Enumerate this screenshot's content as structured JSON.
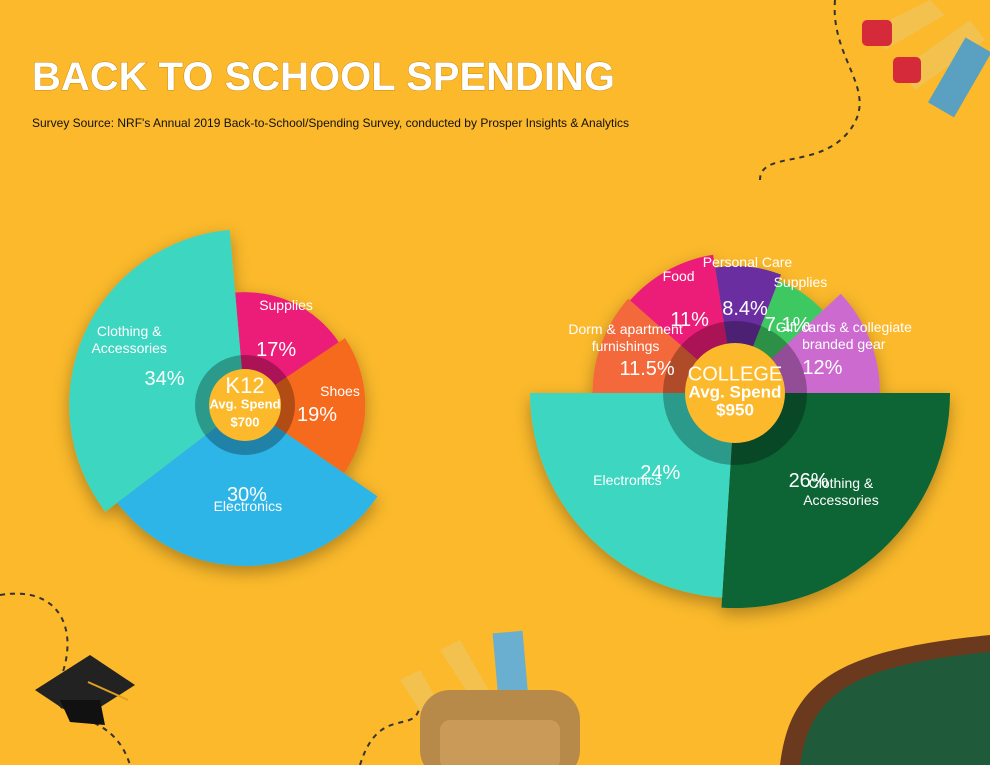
{
  "header": {
    "title": "BACK TO SCHOOL SPENDING",
    "subtitle": "Survey Source: NRF's Annual 2019 Back-to-School/Spending Survey, conducted by Prosper Insights & Analytics"
  },
  "chart_data": [
    {
      "type": "pie",
      "center_title": "K12",
      "center_subtitle": "Avg. Spend",
      "center_value": "$700",
      "categories": [
        "Supplies",
        "Shoes",
        "Electronics",
        "Clothing & Accessories"
      ],
      "values": [
        17,
        19,
        30,
        34
      ],
      "value_labels": [
        "17%",
        "19%",
        "30%",
        "34%"
      ],
      "colors": [
        "#ec1e79",
        "#f56a1a",
        "#2fb5e8",
        "#3ed6c1"
      ]
    },
    {
      "type": "pie",
      "center_title": "COLLEGE",
      "center_subtitle": "Avg. Spend",
      "center_value": "$950",
      "categories": [
        "Clothing & Accessories",
        "Electronics",
        "Dorm & apartment furnishings",
        "Food",
        "Personal Care",
        "Supplies",
        "Gift cards & collegiate branded gear"
      ],
      "values": [
        26,
        24,
        11.5,
        11,
        8.4,
        7.1,
        12
      ],
      "value_labels": [
        "26%",
        "24%",
        "11.5%",
        "11%",
        "8.4%",
        "7.1%",
        "12%"
      ],
      "colors": [
        "#076534",
        "#3ed6c1",
        "#f4693b",
        "#ec1e79",
        "#6a2fa0",
        "#3cc862",
        "#cc6ad0"
      ]
    }
  ]
}
